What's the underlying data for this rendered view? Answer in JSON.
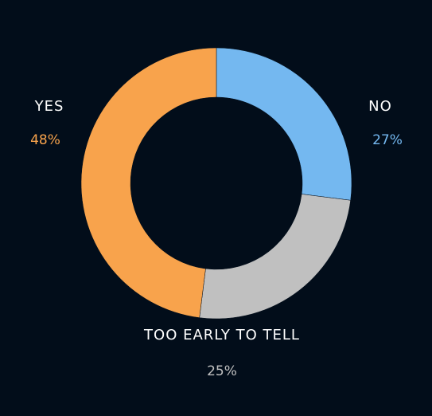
{
  "chart_data": {
    "type": "donut",
    "categories": [
      "NO",
      "TOO EARLY TO TELL",
      "YES"
    ],
    "values": [
      27,
      25,
      48
    ],
    "value_labels": [
      "27%",
      "25%",
      "48%"
    ],
    "colors": [
      "#74b8f0",
      "#c0c0c0",
      "#f8a34c"
    ]
  }
}
